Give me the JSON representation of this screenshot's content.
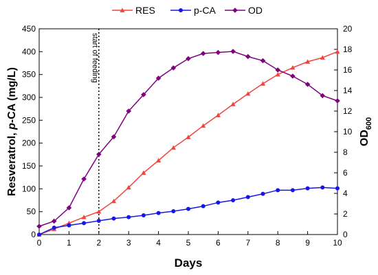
{
  "chart_data": {
    "type": "line",
    "xlabel": "Days",
    "ylabel_parts": [
      {
        "text": "Resveratrol, ",
        "italic": false
      },
      {
        "text": "p",
        "italic": true
      },
      {
        "text": "-CA (mg/L)",
        "italic": false
      }
    ],
    "y2label_main": "OD",
    "y2label_sub": "600",
    "xlim": [
      0,
      10
    ],
    "ylim": [
      0,
      450
    ],
    "y2lim": [
      0,
      20
    ],
    "xticks": [
      0,
      1,
      2,
      3,
      4,
      5,
      6,
      7,
      8,
      9,
      10
    ],
    "yticks": [
      0,
      50,
      100,
      150,
      200,
      250,
      300,
      350,
      400,
      450
    ],
    "y2ticks": [
      0,
      2,
      4,
      6,
      8,
      10,
      12,
      14,
      16,
      18,
      20
    ],
    "legend_position": "top",
    "annotation": {
      "text": "start of feeding",
      "x": 2
    },
    "series": [
      {
        "name": "RES",
        "color": "#f0453f",
        "marker": "triangle",
        "axis": "left",
        "x": [
          0,
          0.5,
          1,
          1.5,
          2,
          2.5,
          3,
          3.5,
          4,
          4.5,
          5,
          5.5,
          6,
          6.5,
          7,
          7.5,
          8,
          8.5,
          9,
          9.5,
          10
        ],
        "y": [
          0,
          12,
          25,
          38,
          50,
          73,
          103,
          135,
          162,
          190,
          213,
          238,
          261,
          285,
          308,
          330,
          350,
          365,
          378,
          387,
          400
        ]
      },
      {
        "name": "p-CA",
        "color": "#1616e6",
        "marker": "circle",
        "axis": "left",
        "x": [
          0,
          0.5,
          1,
          1.5,
          2,
          2.5,
          3,
          3.5,
          4,
          4.5,
          5,
          5.5,
          6,
          6.5,
          7,
          7.5,
          8,
          8.5,
          9,
          9.5,
          10
        ],
        "y": [
          0,
          15,
          20,
          25,
          30,
          35,
          38,
          42,
          47,
          51,
          56,
          62,
          70,
          75,
          82,
          89,
          97,
          97,
          101,
          103,
          101
        ]
      },
      {
        "name": "OD",
        "color": "#800080",
        "marker": "diamond",
        "axis": "right",
        "x": [
          0,
          0.5,
          1,
          1.5,
          2,
          2.5,
          3,
          3.5,
          4,
          4.5,
          5,
          5.5,
          6,
          6.5,
          7,
          7.5,
          8,
          8.5,
          9,
          9.5,
          10
        ],
        "y": [
          0.8,
          1.3,
          2.6,
          5.4,
          7.8,
          9.5,
          12.0,
          13.6,
          15.2,
          16.2,
          17.1,
          17.6,
          17.7,
          17.8,
          17.3,
          16.9,
          16.0,
          15.4,
          14.6,
          13.5,
          13.0
        ]
      }
    ]
  }
}
